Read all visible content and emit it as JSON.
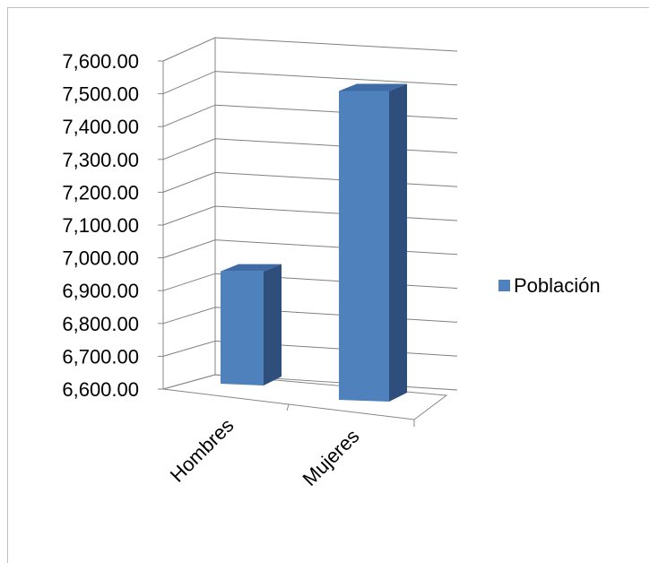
{
  "chart_data": {
    "type": "bar",
    "style": "3d-column",
    "categories": [
      "Hombres",
      "Mujeres"
    ],
    "series": [
      {
        "name": "Población",
        "values": [
          6955,
          7515
        ],
        "color": "#4F81BD"
      }
    ],
    "ylim": [
      6600,
      7600
    ],
    "yticks": [
      "6,600.00",
      "6,700.00",
      "6,800.00",
      "6,900.00",
      "7,000.00",
      "7,100.00",
      "7,200.00",
      "7,300.00",
      "7,400.00",
      "7,500.00",
      "7,600.00"
    ],
    "grid": true,
    "legend": "right"
  }
}
